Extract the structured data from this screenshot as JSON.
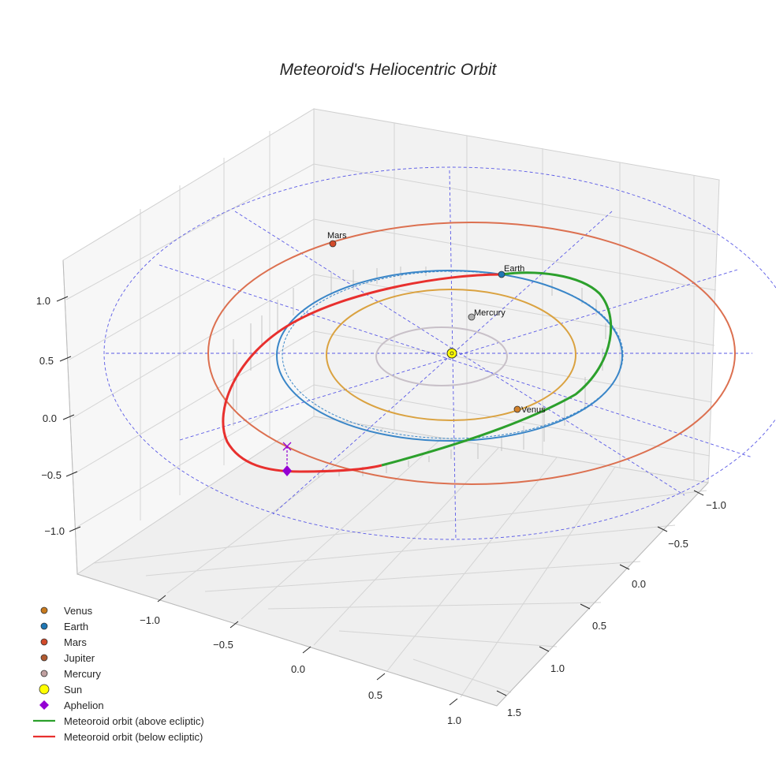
{
  "chart_data": {
    "type": "3d-orbit",
    "title": "Meteoroid's Heliocentric Orbit",
    "axes": {
      "x_ticks": [
        "−1.0",
        "−0.5",
        "0.0",
        "0.5",
        "1.0"
      ],
      "y_ticks": [
        "−1.0",
        "−0.5",
        "0.0",
        "0.5",
        "1.0",
        "1.5"
      ],
      "z_ticks": [
        "−1.0",
        "−0.5",
        "0.0",
        "0.5",
        "1.0"
      ]
    },
    "planets": [
      {
        "name": "Mercury",
        "label": "Mercury",
        "color": "#b0b0b0",
        "orbit_color": "#c8c0c8"
      },
      {
        "name": "Venus",
        "label": "Venus",
        "color": "#d0802a",
        "orbit_color": "#daa240"
      },
      {
        "name": "Earth",
        "label": "Earth",
        "color": "#1f77b4",
        "orbit_color": "#3a86c8"
      },
      {
        "name": "Mars",
        "label": "Mars",
        "color": "#d24a2a",
        "orbit_color": "#dc7050"
      }
    ],
    "sun": {
      "name": "Sun",
      "color": "#ffff00"
    },
    "aphelion": {
      "name": "Aphelion",
      "color": "#9400d3"
    },
    "meteoroid": {
      "above_color": "#2ca02c",
      "below_color": "#e8302e"
    },
    "legend": [
      {
        "label": "Venus",
        "marker": "dot",
        "color": "#c87a1e"
      },
      {
        "label": "Earth",
        "marker": "dot",
        "color": "#1f77b4"
      },
      {
        "label": "Mars",
        "marker": "dot",
        "color": "#d24a2a"
      },
      {
        "label": "Jupiter",
        "marker": "dot",
        "color": "#b05a30"
      },
      {
        "label": "Mercury",
        "marker": "dot",
        "color": "#c0a0a0"
      },
      {
        "label": "Sun",
        "marker": "bigdot",
        "color": "#ffff00"
      },
      {
        "label": "Aphelion",
        "marker": "diamond",
        "color": "#9400d3"
      },
      {
        "label": "Meteoroid orbit (above ecliptic)",
        "marker": "line",
        "color": "#2ca02c"
      },
      {
        "label": "Meteoroid orbit (below ecliptic)",
        "marker": "line",
        "color": "#e8302e"
      }
    ]
  }
}
